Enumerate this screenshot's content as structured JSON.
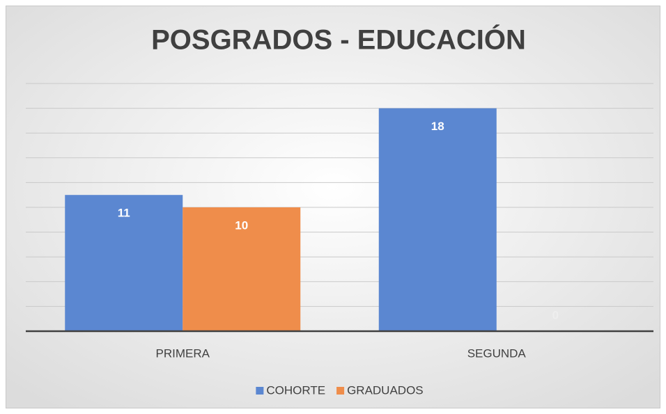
{
  "chart_data": {
    "type": "bar",
    "title": "POSGRADOS - EDUCACIÓN",
    "categories": [
      "PRIMERA",
      "SEGUNDA"
    ],
    "series": [
      {
        "name": "COHORTE",
        "color": "#5b87d1",
        "values": [
          11,
          18
        ]
      },
      {
        "name": "GRADUADOS",
        "color": "#ef8d4b",
        "values": [
          10,
          0
        ]
      }
    ],
    "ylim": [
      0,
      20
    ],
    "yticks": [
      0,
      2,
      4,
      6,
      8,
      10,
      12,
      14,
      16,
      18,
      20
    ],
    "grid": true,
    "legend": "bottom"
  }
}
